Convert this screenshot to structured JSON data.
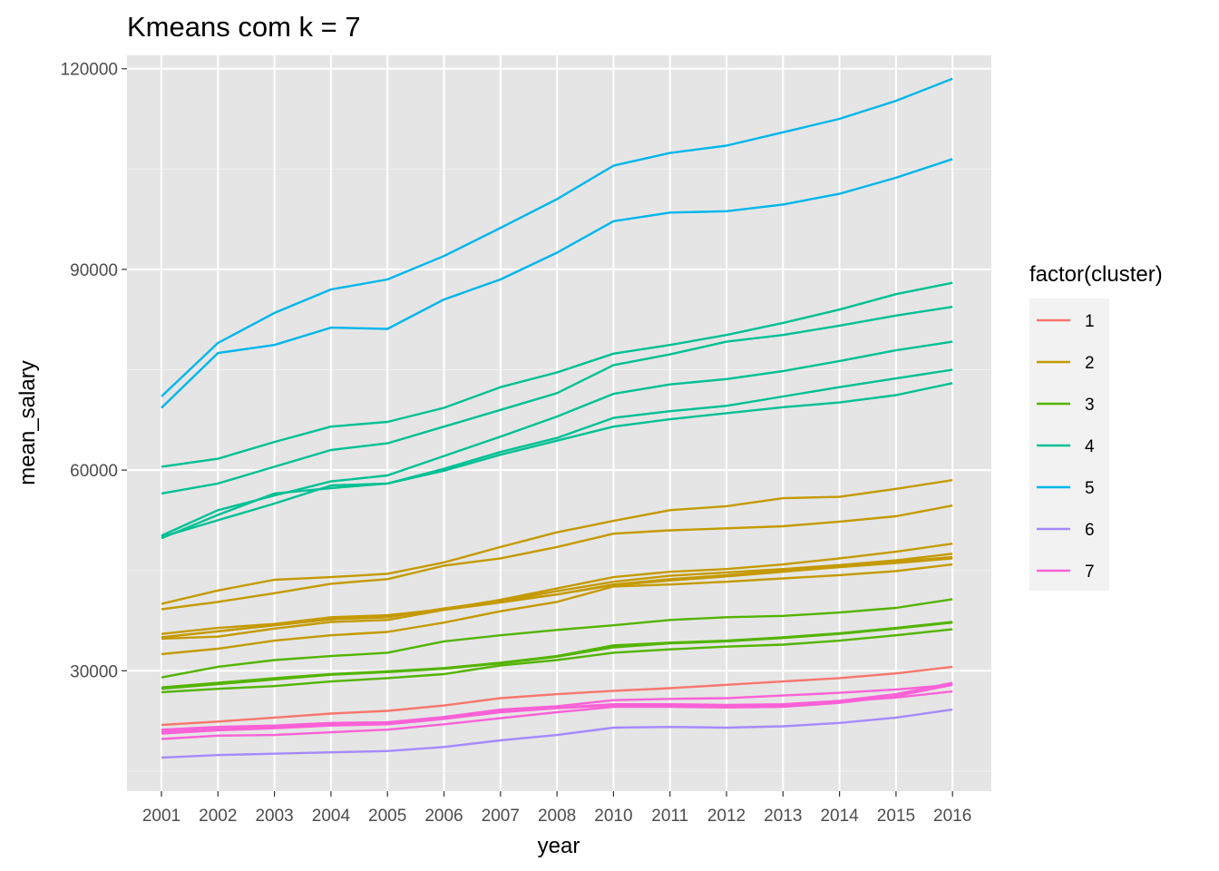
{
  "chart_data": {
    "type": "line",
    "title": "Kmeans com k = 7",
    "xlabel": "year",
    "ylabel": "mean_salary",
    "x": [
      "2001",
      "2002",
      "2003",
      "2004",
      "2005",
      "2006",
      "2007",
      "2008",
      "2010",
      "2011",
      "2012",
      "2013",
      "2014",
      "2015",
      "2016"
    ],
    "x_scale": "categorical",
    "ylim": [
      12000,
      122000
    ],
    "yticks": [
      30000,
      60000,
      90000,
      120000
    ],
    "yticks_labels": [
      "30000",
      "60000",
      "90000",
      "120000"
    ],
    "grid": true,
    "background": "#e5e5e5",
    "legend": {
      "title": "factor(cluster)",
      "position": "right",
      "entries": [
        {
          "label": "1",
          "color": "#F8766D"
        },
        {
          "label": "2",
          "color": "#C49A00"
        },
        {
          "label": "3",
          "color": "#53B400"
        },
        {
          "label": "4",
          "color": "#00C094"
        },
        {
          "label": "5",
          "color": "#00B6EB"
        },
        {
          "label": "6",
          "color": "#A58AFF"
        },
        {
          "label": "7",
          "color": "#FB61D7"
        }
      ]
    },
    "series": [
      {
        "cluster": "5",
        "color": "#00B6EB",
        "values": [
          71000,
          79000,
          83500,
          87000,
          88500,
          92000,
          96200,
          100500,
          105500,
          107400,
          108500,
          110500,
          112500,
          115200,
          118500
        ]
      },
      {
        "cluster": "5",
        "color": "#00B6EB",
        "values": [
          69300,
          77500,
          78700,
          81300,
          81100,
          85500,
          88500,
          92500,
          97200,
          98500,
          98700,
          99700,
          101300,
          103700,
          106500
        ]
      },
      {
        "cluster": "4",
        "color": "#00C094",
        "values": [
          60500,
          61700,
          64200,
          66500,
          67200,
          69300,
          72400,
          74600,
          77400,
          78700,
          80200,
          82000,
          84000,
          86300,
          88000
        ]
      },
      {
        "cluster": "4",
        "color": "#00C094",
        "values": [
          56500,
          58000,
          60500,
          63000,
          64000,
          66500,
          69000,
          71500,
          75700,
          77300,
          79200,
          80200,
          81600,
          83100,
          84400
        ]
      },
      {
        "cluster": "4",
        "color": "#00C094",
        "values": [
          50200,
          54000,
          56200,
          58300,
          59200,
          62100,
          65000,
          68000,
          71400,
          72800,
          73600,
          74800,
          76300,
          77900,
          79200
        ]
      },
      {
        "cluster": "4",
        "color": "#00C094",
        "values": [
          49800,
          53300,
          56500,
          57300,
          58000,
          60200,
          62700,
          64800,
          67800,
          68800,
          69600,
          71000,
          72400,
          73700,
          75000
        ]
      },
      {
        "cluster": "4",
        "color": "#00C094",
        "values": [
          50000,
          52500,
          55000,
          57700,
          58000,
          59900,
          62300,
          64400,
          66500,
          67600,
          68500,
          69400,
          70100,
          71200,
          73000
        ]
      },
      {
        "cluster": "2",
        "color": "#C49A00",
        "values": [
          40000,
          42000,
          43600,
          44000,
          44500,
          46200,
          48500,
          50700,
          52400,
          54000,
          54600,
          55800,
          56000,
          57200,
          58500
        ]
      },
      {
        "cluster": "2",
        "color": "#C49A00",
        "values": [
          39200,
          40300,
          41600,
          43000,
          43700,
          45700,
          46800,
          48500,
          50500,
          51000,
          51300,
          51600,
          52300,
          53100,
          54700
        ]
      },
      {
        "cluster": "2",
        "color": "#C49A00",
        "values": [
          35500,
          36400,
          37000,
          38000,
          38300,
          39200,
          40600,
          42300,
          44000,
          44800,
          45200,
          45900,
          46800,
          47800,
          49000
        ]
      },
      {
        "cluster": "2",
        "color": "#C49A00",
        "values": [
          35000,
          35900,
          36800,
          37700,
          38000,
          39300,
          40500,
          41900,
          43300,
          44200,
          44700,
          45200,
          45800,
          46500,
          47500
        ]
      },
      {
        "cluster": "2",
        "color": "#C49A00",
        "values": [
          35000,
          35900,
          36800,
          37700,
          38000,
          39300,
          40400,
          41400,
          42900,
          43700,
          44300,
          45000,
          45700,
          46300,
          47000
        ]
      },
      {
        "cluster": "2",
        "color": "#C49A00",
        "values": [
          34800,
          35100,
          36300,
          37300,
          37600,
          39100,
          40200,
          41400,
          42800,
          43500,
          44100,
          44800,
          45500,
          46100,
          46800
        ]
      },
      {
        "cluster": "2",
        "color": "#C49A00",
        "values": [
          32500,
          33300,
          34500,
          35300,
          35800,
          37200,
          38900,
          40300,
          42600,
          42900,
          43300,
          43800,
          44300,
          44900,
          45900
        ]
      },
      {
        "cluster": "3",
        "color": "#53B400",
        "values": [
          29000,
          30600,
          31600,
          32200,
          32700,
          34400,
          35300,
          36100,
          36800,
          37600,
          38000,
          38200,
          38700,
          39400,
          40700
        ]
      },
      {
        "cluster": "3",
        "color": "#53B400",
        "values": [
          27500,
          28200,
          28900,
          29500,
          29900,
          30400,
          31200,
          32200,
          33800,
          34200,
          34500,
          35000,
          35600,
          36400,
          37300
        ]
      },
      {
        "cluster": "3",
        "color": "#53B400",
        "values": [
          27300,
          28000,
          28700,
          29400,
          29800,
          30300,
          31100,
          32100,
          33500,
          34100,
          34400,
          34900,
          35500,
          36300,
          37200
        ]
      },
      {
        "cluster": "3",
        "color": "#53B400",
        "values": [
          26800,
          27300,
          27700,
          28400,
          28900,
          29500,
          30800,
          31600,
          32700,
          33200,
          33600,
          33900,
          34500,
          35300,
          36200
        ]
      },
      {
        "cluster": "1",
        "color": "#F8766D",
        "values": [
          21900,
          22400,
          23000,
          23600,
          24000,
          24800,
          25900,
          26500,
          27000,
          27400,
          27900,
          28400,
          28900,
          29600,
          30600
        ]
      },
      {
        "cluster": "7",
        "color": "#FB61D7",
        "values": [
          21200,
          21600,
          21800,
          22200,
          22300,
          23100,
          24200,
          24700,
          25600,
          25800,
          25900,
          26300,
          26700,
          27200,
          27900
        ]
      },
      {
        "cluster": "7",
        "color": "#FB61D7",
        "values": [
          20900,
          21300,
          21600,
          22000,
          22100,
          23000,
          24000,
          24500,
          25000,
          25000,
          24900,
          25000,
          25500,
          26500,
          28200
        ]
      },
      {
        "cluster": "7",
        "color": "#FB61D7",
        "values": [
          20600,
          21100,
          21400,
          21800,
          22000,
          22800,
          23800,
          24400,
          24800,
          24800,
          24700,
          24800,
          25400,
          26000,
          26900
        ]
      },
      {
        "cluster": "7",
        "color": "#FB61D7",
        "values": [
          19800,
          20300,
          20400,
          20800,
          21200,
          22000,
          22900,
          23800,
          24600,
          24600,
          24500,
          24600,
          25200,
          26200,
          27900
        ]
      },
      {
        "cluster": "6",
        "color": "#A58AFF",
        "values": [
          17000,
          17400,
          17600,
          17800,
          18000,
          18600,
          19600,
          20400,
          21500,
          21600,
          21500,
          21700,
          22200,
          23000,
          24200
        ]
      }
    ]
  }
}
